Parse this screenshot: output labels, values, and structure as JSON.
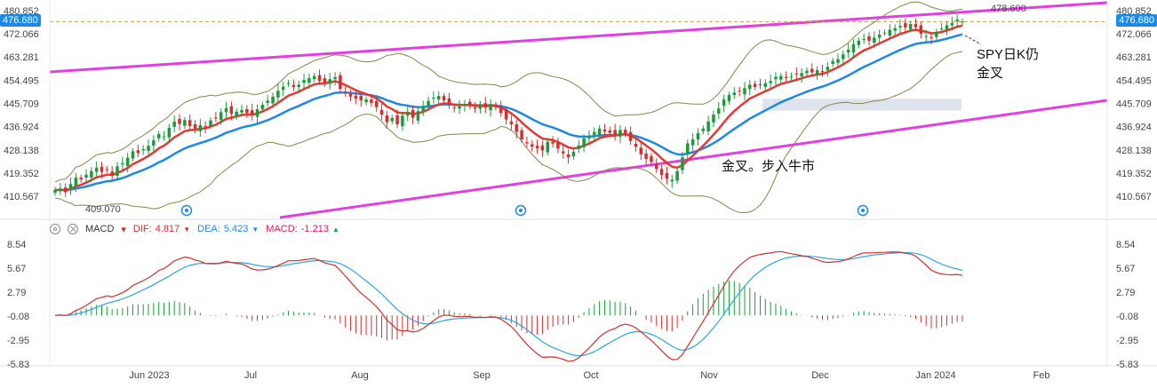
{
  "chart_data": [
    {
      "type": "candlestick",
      "title": "",
      "price_axis_ticks": [
        "480.852",
        "472.066",
        "463.281",
        "454.495",
        "445.709",
        "436.924",
        "428.138",
        "419.352",
        "410.567"
      ],
      "price_axis_values": [
        480.852,
        472.066,
        463.281,
        454.495,
        445.709,
        436.924,
        428.138,
        419.352,
        410.567
      ],
      "current_price": "476.680",
      "current_price_value": 476.68,
      "labels_on_chart": [
        "478.600",
        "409.070"
      ],
      "x_tick_labels": [
        "Jun 2023",
        "Jul",
        "Aug",
        "Sep",
        "Oct",
        "Nov",
        "Dec",
        "Jan 2024",
        "Feb"
      ],
      "annotations": [
        "SPY日K仍",
        "金叉",
        "金叉。步入牛市"
      ],
      "colors": {
        "up": "#1a9c3c",
        "down": "#d32f2f",
        "ma_fast": "#e53935",
        "ma_slow": "#1e88e5",
        "band": "#8a8448",
        "channel": "#e040e0",
        "price_line": "#c8a050",
        "zone": "#cfd8e6"
      },
      "close": [
        412.9,
        413.5,
        412.1,
        415.2,
        417.6,
        416.9,
        418.7,
        420.1,
        421.4,
        419.8,
        420.6,
        418.3,
        421.9,
        423.1,
        425.2,
        427.6,
        426.9,
        428.4,
        429.7,
        431.8,
        434.1,
        433.2,
        436.5,
        438.8,
        437.9,
        439.4,
        437.1,
        436.2,
        437.5,
        436.8,
        439.3,
        440.1,
        442.4,
        443.9,
        441.8,
        442.6,
        443.2,
        442.1,
        441.3,
        443.5,
        445.2,
        446.8,
        448.3,
        450.5,
        452.1,
        453.4,
        451.9,
        452.8,
        454.6,
        455.3,
        456.1,
        454.2,
        453.8,
        454.9,
        455.7,
        451.2,
        449.8,
        448.3,
        447.5,
        446.9,
        447.2,
        445.9,
        444.3,
        441.5,
        438.6,
        440.2,
        437.8,
        441.1,
        442.5,
        440.3,
        442.8,
        444.6,
        446.7,
        447.9,
        448.5,
        446.9,
        445.2,
        444.1,
        444.6,
        445.3,
        444.8,
        443.7,
        445.1,
        444.2,
        445.5,
        444.3,
        442.1,
        439.6,
        437.8,
        434.9,
        432.1,
        430.6,
        429.3,
        428.7,
        427.9,
        431.2,
        430.5,
        428.6,
        426.8,
        425.3,
        427.4,
        429.8,
        432.5,
        433.1,
        434.9,
        436.2,
        435.1,
        434.6,
        433.8,
        435.7,
        434.2,
        431.5,
        429.3,
        426.4,
        424.7,
        423.5,
        420.9,
        418.6,
        417.2,
        416.8,
        420.1,
        425.3,
        430.6,
        432.1,
        434.5,
        436.2,
        438.9,
        441.5,
        443.8,
        447.2,
        448.9,
        449.8,
        450.2,
        451.5,
        452.8,
        451.9,
        452.6,
        453.4,
        454.2,
        455.8,
        456.1,
        455.3,
        455.9,
        456.7,
        457.2,
        458.1,
        457.5,
        458.3,
        457.9,
        459.6,
        461.8,
        462.5,
        464.3,
        466.1,
        468.2,
        469.5,
        470.1,
        469.4,
        470.6,
        471.8,
        472.5,
        473.6,
        474.2,
        475.1,
        474.5,
        475.8,
        474.6,
        472.1,
        471.2,
        470.5,
        472.8,
        474.1,
        475.3,
        476.2,
        477.5,
        476.68
      ],
      "series": [
        {
          "name": "MACD",
          "dif": 4.817,
          "dea": 5.423,
          "macd": -1.213
        }
      ]
    },
    {
      "type": "macd",
      "axis_ticks": [
        "8.54",
        "5.67",
        "2.79",
        "-0.08",
        "-2.95",
        "-5.83"
      ],
      "axis_values": [
        8.54,
        5.67,
        2.79,
        -0.08,
        -2.95,
        -5.83
      ]
    }
  ],
  "legend": {
    "name": "MACD",
    "dif_label": "DIF:",
    "dif_value": "4.817",
    "dea_label": "DEA:",
    "dea_value": "5.423",
    "macd_label": "MACD:",
    "macd_value": "-1.213",
    "up_arrow": "▲",
    "down_arrow": "▼"
  },
  "annotations": {
    "spy_line1": "SPY日K仍",
    "spy_line2": "金叉",
    "bull": "金叉。步入牛市",
    "high_label": "478.600",
    "low_label": "409.070"
  },
  "price_tags": {
    "current": "476.680"
  }
}
